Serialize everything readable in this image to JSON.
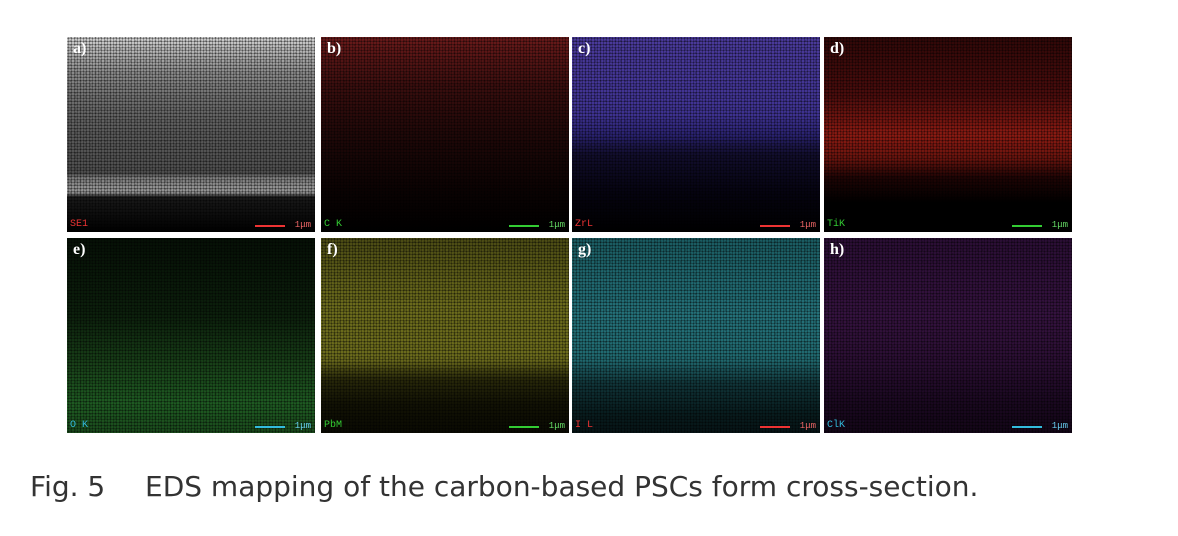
{
  "panels": [
    {
      "letter": "a)",
      "element": "SE1",
      "scale": "1μm"
    },
    {
      "letter": "b)",
      "element": "C K",
      "scale": "1μm"
    },
    {
      "letter": "c)",
      "element": "ZrL",
      "scale": "1μm"
    },
    {
      "letter": "d)",
      "element": "TiK",
      "scale": "1μm"
    },
    {
      "letter": "e)",
      "element": "O K",
      "scale": "1μm"
    },
    {
      "letter": "f)",
      "element": "PbM",
      "scale": "1μm"
    },
    {
      "letter": "g)",
      "element": "I L",
      "scale": "1μm"
    },
    {
      "letter": "h)",
      "element": "ClK",
      "scale": "1μm"
    }
  ],
  "caption": {
    "label": "Fig. 5",
    "text": "EDS mapping of the carbon-based PSCs form cross-section."
  }
}
